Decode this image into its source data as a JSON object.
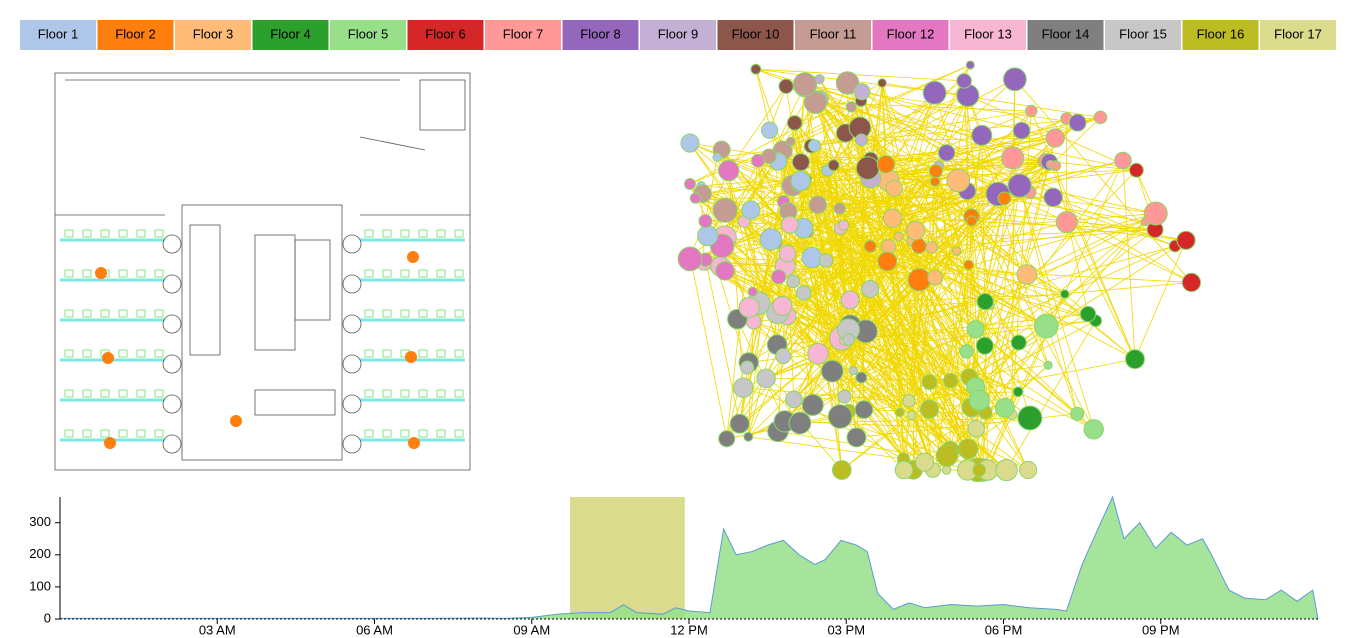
{
  "legend": [
    {
      "name": "Floor 1",
      "color": "#aec7e8"
    },
    {
      "name": "Floor 2",
      "color": "#ff7f0e"
    },
    {
      "name": "Floor 3",
      "color": "#ffbb78"
    },
    {
      "name": "Floor 4",
      "color": "#2ca02c"
    },
    {
      "name": "Floor 5",
      "color": "#98df8a"
    },
    {
      "name": "Floor 6",
      "color": "#d62728"
    },
    {
      "name": "Floor 7",
      "color": "#ff9896"
    },
    {
      "name": "Floor 8",
      "color": "#9467bd"
    },
    {
      "name": "Floor 9",
      "color": "#c5b0d5"
    },
    {
      "name": "Floor 10",
      "color": "#8c564b"
    },
    {
      "name": "Floor 11",
      "color": "#c49c94"
    },
    {
      "name": "Floor 12",
      "color": "#e377c2"
    },
    {
      "name": "Floor 13",
      "color": "#f7b6d2"
    },
    {
      "name": "Floor 14",
      "color": "#7f7f7f"
    },
    {
      "name": "Floor 15",
      "color": "#c7c7c7"
    },
    {
      "name": "Floor 16",
      "color": "#bcbd22"
    },
    {
      "name": "Floor 17",
      "color": "#dbdb8d"
    }
  ],
  "chart_data": {
    "type": "area",
    "x": [
      0,
      1,
      2,
      3,
      4,
      5,
      6,
      7,
      8,
      8.5,
      9,
      9.5,
      10,
      10.5,
      10.75,
      11,
      11.5,
      11.75,
      12,
      12.4,
      12.66,
      12.9,
      13.2,
      13.5,
      13.8,
      14.1,
      14.4,
      14.6,
      14.9,
      15.2,
      15.4,
      15.6,
      15.9,
      16.2,
      16.5,
      17,
      17.5,
      18,
      18.5,
      19,
      19.2,
      19.5,
      19.8,
      20.08,
      20.3,
      20.6,
      20.9,
      21.2,
      21.5,
      21.8,
      22,
      22.3,
      22.6,
      23,
      23.3,
      23.6,
      23.9,
      24
    ],
    "values": [
      2,
      2,
      2,
      2,
      2,
      2,
      2,
      2,
      3,
      2,
      5,
      15,
      20,
      20,
      44,
      20,
      15,
      35,
      25,
      20,
      280,
      200,
      210,
      230,
      245,
      200,
      170,
      185,
      245,
      230,
      210,
      80,
      30,
      50,
      35,
      45,
      40,
      45,
      35,
      30,
      25,
      170,
      280,
      380,
      250,
      300,
      220,
      270,
      230,
      250,
      190,
      90,
      65,
      60,
      90,
      55,
      90,
      0
    ],
    "color": "#98df8a",
    "line_color": "#5b9bd5",
    "xlim": [
      0,
      24
    ],
    "xticks": [
      {
        "value": 3,
        "label": "03 AM"
      },
      {
        "value": 6,
        "label": "06 AM"
      },
      {
        "value": 9,
        "label": "09 AM"
      },
      {
        "value": 12,
        "label": "12 PM"
      },
      {
        "value": 15,
        "label": "03 PM"
      },
      {
        "value": 18,
        "label": "06 PM"
      },
      {
        "value": 21,
        "label": "09 PM"
      }
    ],
    "ylim": [
      0,
      380
    ],
    "yticks": [
      0,
      100,
      200,
      300
    ],
    "brush": {
      "range": [
        9.73,
        11.92
      ],
      "color": "#dbdb8d"
    }
  }
}
